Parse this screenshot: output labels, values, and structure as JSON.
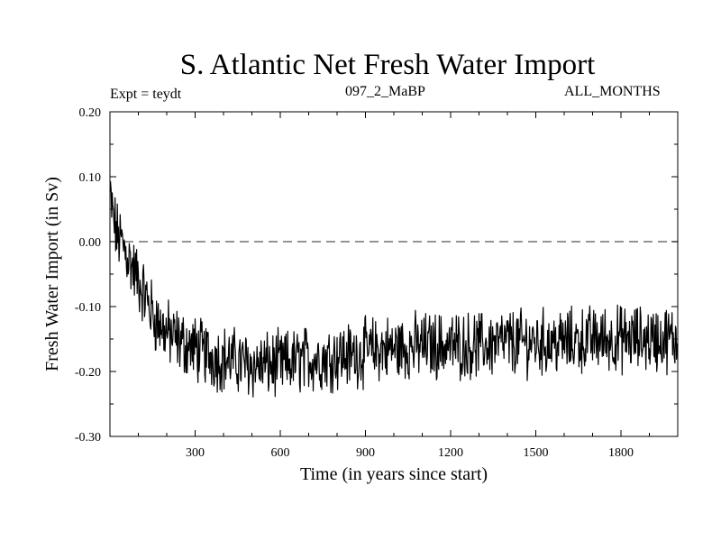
{
  "header": {
    "title": "S. Atlantic Net Fresh Water Import",
    "expt_label": "Expt = teydt",
    "run_label": "097_2_MaBP",
    "months_label": "ALL_MONTHS"
  },
  "chart_data": {
    "type": "line",
    "title": "S. Atlantic Net Fresh Water Import",
    "xlabel": "Time (in years since start)",
    "ylabel": "Fresh Water Import (in Sv)",
    "xlim": [
      0,
      2000
    ],
    "ylim": [
      -0.3,
      0.2
    ],
    "x_ticks": [
      300,
      600,
      900,
      1200,
      1500,
      1800
    ],
    "x_tick_labels": [
      "300",
      "600",
      "900",
      "1200",
      "1500",
      "1800"
    ],
    "y_ticks": [
      0.2,
      0.1,
      0.0,
      -0.1,
      -0.2,
      -0.3
    ],
    "y_tick_labels": [
      "0.20",
      "0.10",
      "0.00",
      "-0.10",
      "-0.20",
      "-0.30"
    ],
    "reference_line": {
      "y": 0.0,
      "style": "dashed"
    },
    "series": [
      {
        "name": "Net Fresh Water Import",
        "style": "noisy",
        "x": [
          0,
          10,
          25,
          40,
          60,
          80,
          100,
          120,
          140,
          160,
          180,
          200,
          250,
          300,
          350,
          400,
          450,
          500,
          550,
          600,
          650,
          700,
          750,
          800,
          850,
          900,
          950,
          1000,
          1100,
          1200,
          1300,
          1400,
          1500,
          1600,
          1700,
          1800,
          1900,
          2000
        ],
        "values": [
          0.07,
          0.04,
          0.01,
          0.0,
          -0.02,
          -0.04,
          -0.06,
          -0.08,
          -0.1,
          -0.12,
          -0.13,
          -0.14,
          -0.155,
          -0.165,
          -0.175,
          -0.18,
          -0.185,
          -0.19,
          -0.19,
          -0.19,
          -0.185,
          -0.18,
          -0.18,
          -0.175,
          -0.175,
          -0.17,
          -0.165,
          -0.165,
          -0.16,
          -0.16,
          -0.16,
          -0.155,
          -0.155,
          -0.155,
          -0.15,
          -0.15,
          -0.15,
          -0.15
        ]
      }
    ]
  }
}
